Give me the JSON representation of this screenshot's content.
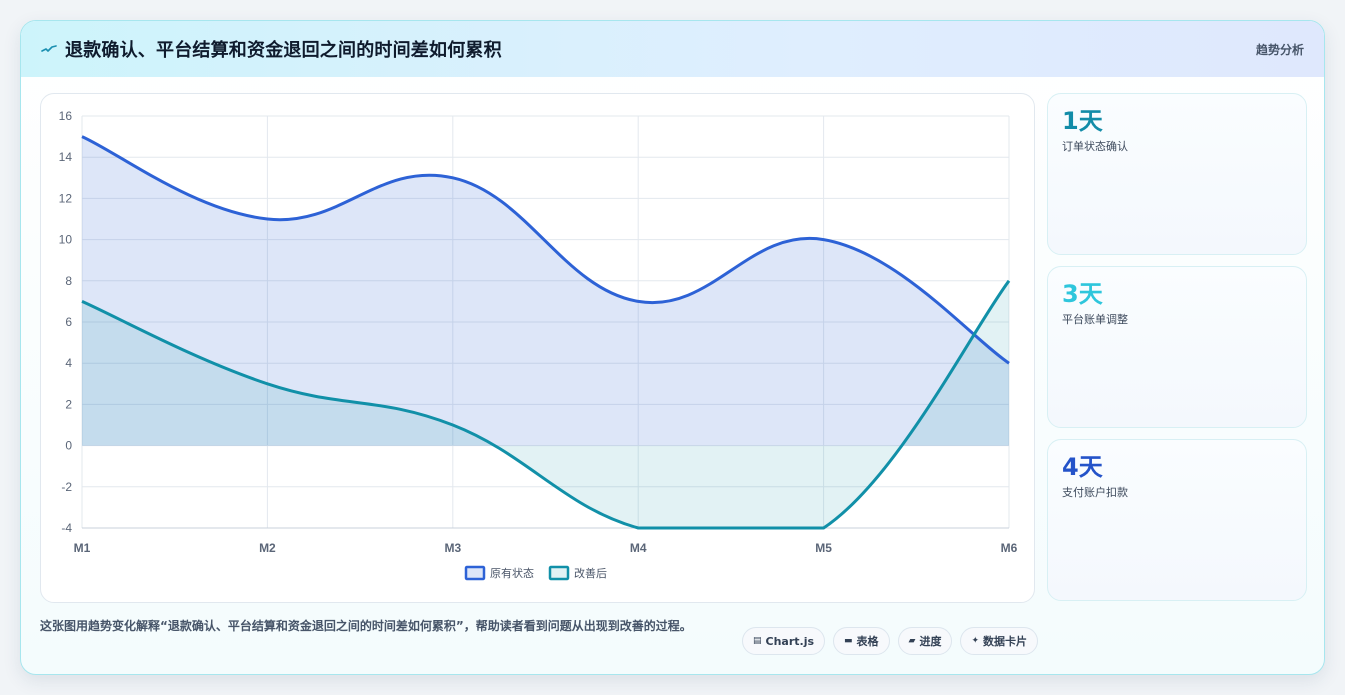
{
  "header": {
    "title": "退款确认、平台结算和资金退回之间的时间差如何累积",
    "tag": "趋势分析",
    "icon": "pulse-icon"
  },
  "chart_data": {
    "type": "line",
    "categories": [
      "M1",
      "M2",
      "M3",
      "M4",
      "M5",
      "M6"
    ],
    "ylim": [
      -4,
      16
    ],
    "yticks": [
      -4,
      -2,
      0,
      2,
      4,
      6,
      8,
      10,
      12,
      14,
      16
    ],
    "grid": true,
    "legend_position": "bottom",
    "series": [
      {
        "name": "原有状态",
        "values": [
          15,
          11,
          13,
          7,
          10,
          4
        ],
        "color": "#2d62d6",
        "fill": "rgba(45, 98, 214, 0.16)"
      },
      {
        "name": "改善后",
        "values": [
          7,
          3,
          1,
          -4,
          -4,
          8
        ],
        "color": "#1190a8",
        "fill": "rgba(17, 144, 168, 0.12)"
      }
    ]
  },
  "stats": [
    {
      "value": "1天",
      "label": "订单状态确认",
      "color": "#138ca8"
    },
    {
      "value": "3天",
      "label": "平台账单调整",
      "color": "#2ec6dc"
    },
    {
      "value": "4天",
      "label": "支付账户扣款",
      "color": "#2453c9"
    }
  ],
  "footer": {
    "description": "这张图用趋势变化解释“退款确认、平台结算和资金退回之间的时间差如何累积”，帮助读者看到问题从出现到改善的过程。",
    "pills": [
      {
        "icon": "▤",
        "label": "Chart.js"
      },
      {
        "icon": "▬",
        "label": "表格"
      },
      {
        "icon": "▰",
        "label": "进度"
      },
      {
        "icon": "✦",
        "label": "数据卡片"
      }
    ]
  }
}
